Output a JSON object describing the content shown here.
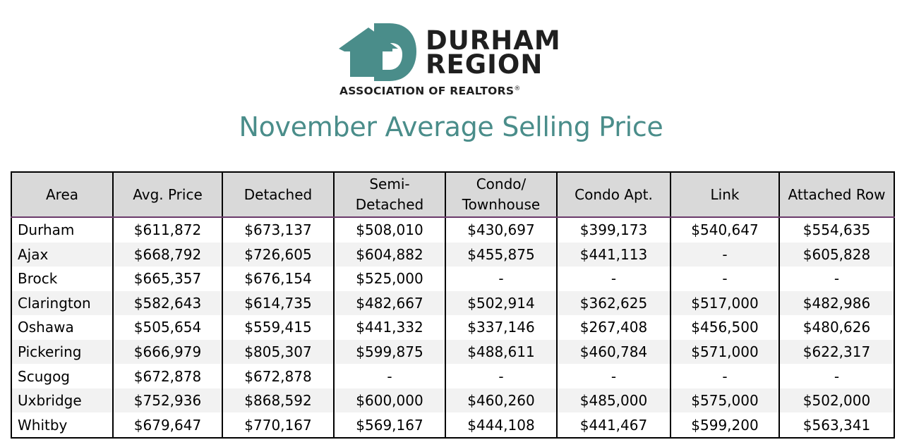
{
  "logo": {
    "word1": "DURHAM",
    "word2": "REGION",
    "tagline": "ASSOCIATION OF REALTORS",
    "tagline_mark": "®",
    "brand_color": "#4a8d8a"
  },
  "title": "November Average Selling Price",
  "table": {
    "headers": [
      "Area",
      "Avg. Price",
      "Detached",
      "Semi-Detached",
      "Condo/ Townhouse",
      "Condo Apt.",
      "Link",
      "Attached Row"
    ],
    "rows": [
      [
        "Durham",
        "$611,872",
        "$673,137",
        "$508,010",
        "$430,697",
        "$399,173",
        "$540,647",
        "$554,635"
      ],
      [
        "Ajax",
        "$668,792",
        "$726,605",
        "$604,882",
        "$455,875",
        "$441,113",
        "-",
        "$605,828"
      ],
      [
        "Brock",
        "$665,357",
        "$676,154",
        "$525,000",
        "-",
        "-",
        "-",
        "-"
      ],
      [
        "Clarington",
        "$582,643",
        "$614,735",
        "$482,667",
        "$502,914",
        "$362,625",
        "$517,000",
        "$482,986"
      ],
      [
        "Oshawa",
        "$505,654",
        "$559,415",
        "$441,332",
        "$337,146",
        "$267,408",
        "$456,500",
        "$480,626"
      ],
      [
        "Pickering",
        "$666,979",
        "$805,307",
        "$599,875",
        "$488,611",
        "$460,784",
        "$571,000",
        "$622,317"
      ],
      [
        "Scugog",
        "$672,878",
        "$672,878",
        "-",
        "-",
        "-",
        "-",
        "-"
      ],
      [
        "Uxbridge",
        "$752,936",
        "$868,592",
        "$600,000",
        "$460,260",
        "$485,000",
        "$575,000",
        "$502,000"
      ],
      [
        "Whitby",
        "$679,647",
        "$770,167",
        "$569,167",
        "$444,108",
        "$441,467",
        "$599,200",
        "$563,341"
      ]
    ]
  }
}
